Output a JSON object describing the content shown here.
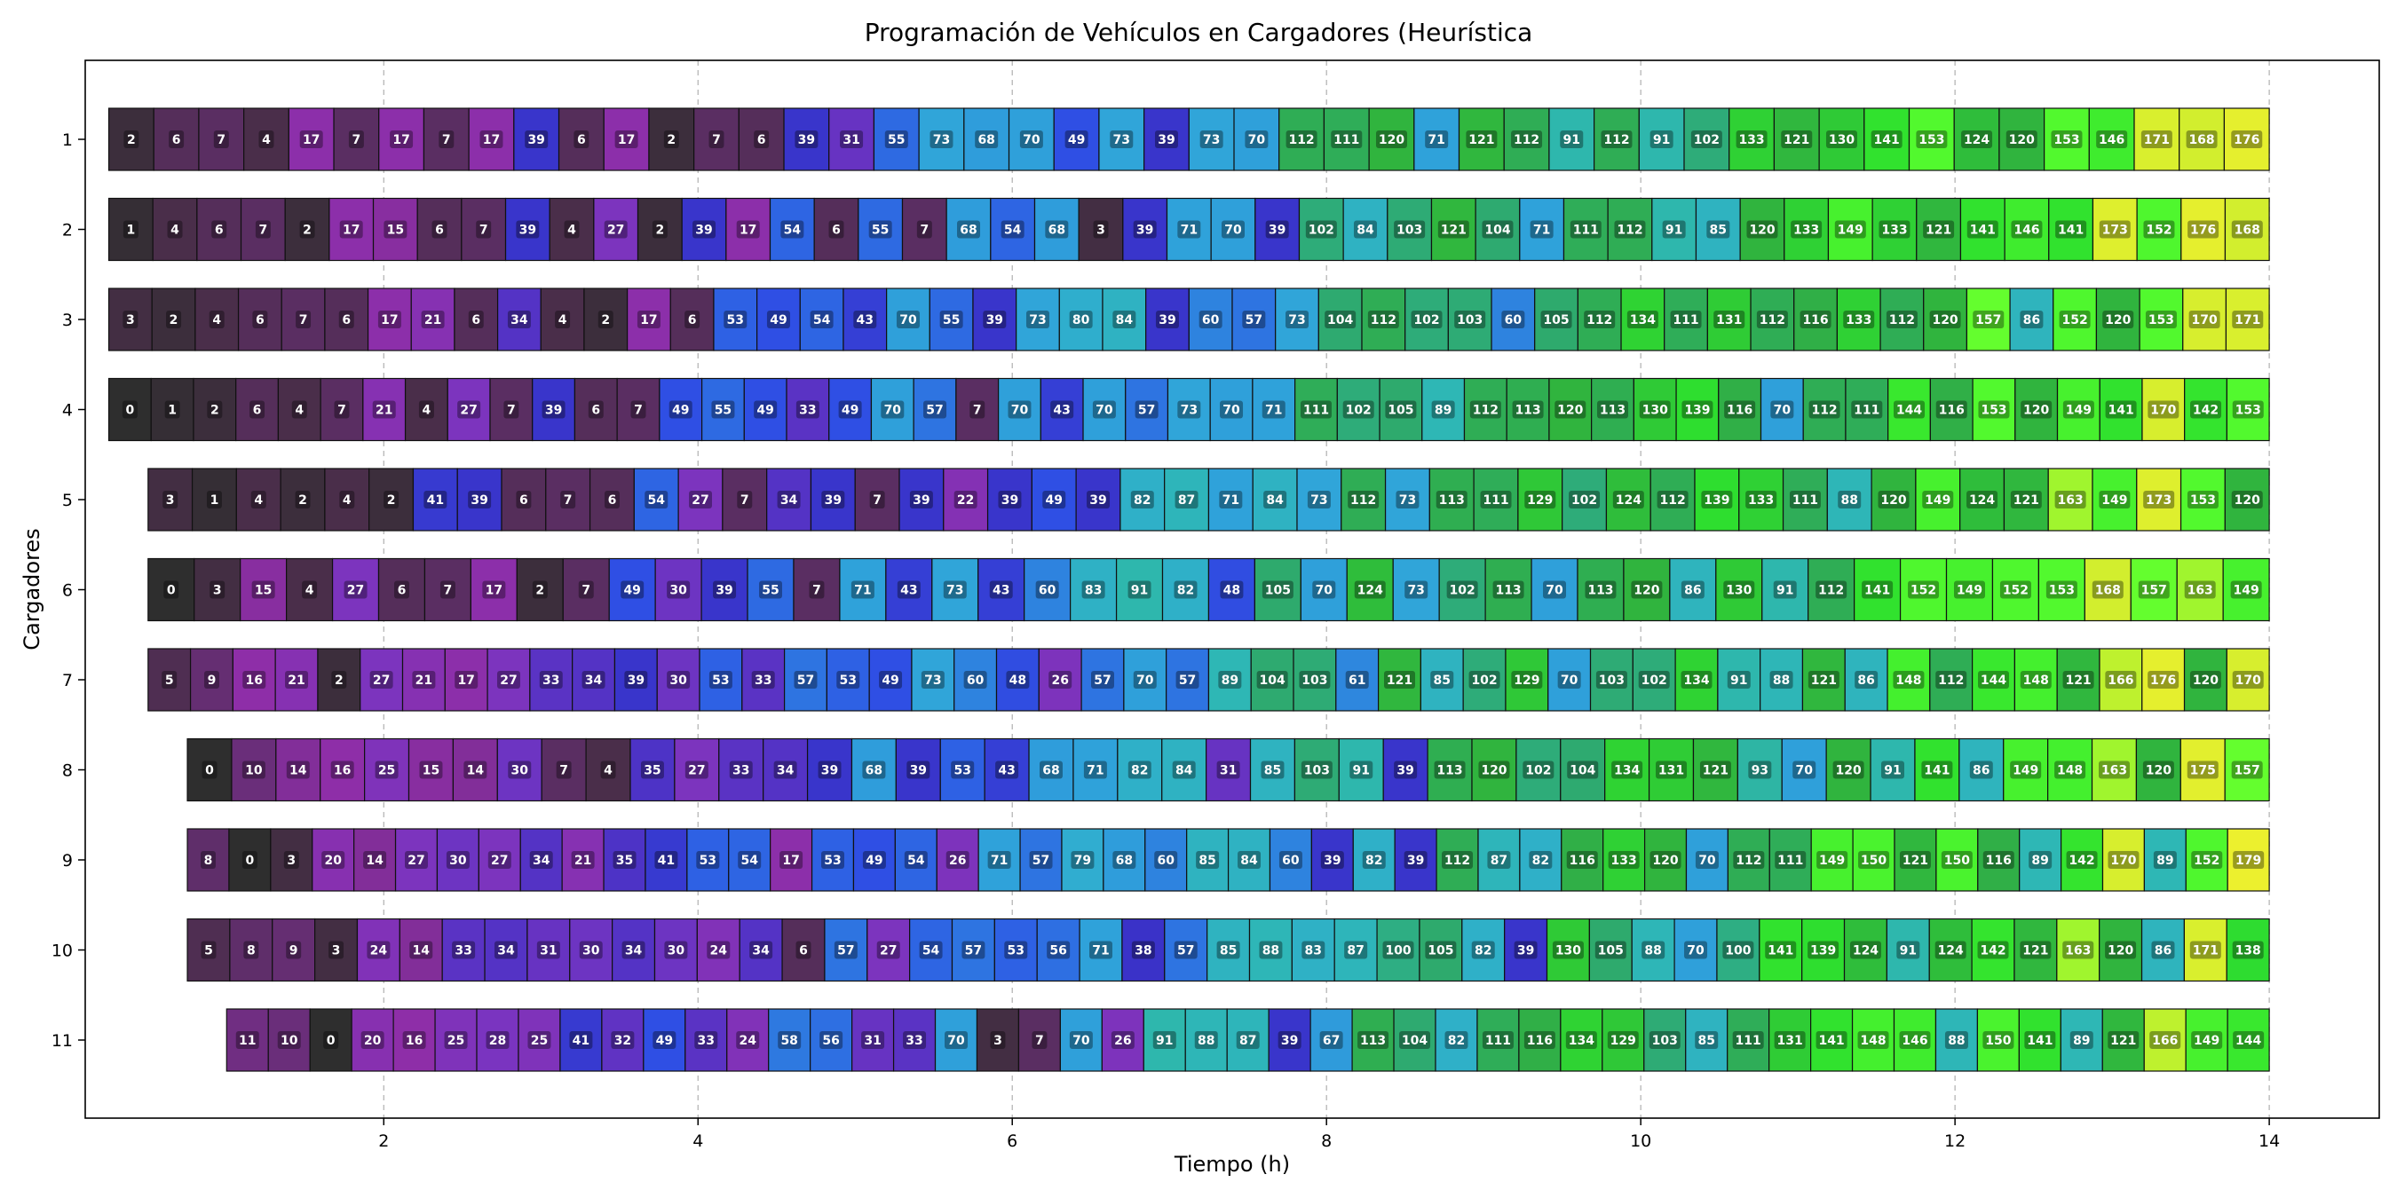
{
  "chart_data": {
    "type": "gantt",
    "title": "Programación de Vehículos en Cargadores (Heurística",
    "xlabel": "Tiempo (h)",
    "ylabel": "Cargadores",
    "xlim": [
      0.1,
      14.7
    ],
    "x_ticks": [
      2,
      4,
      6,
      8,
      10,
      12,
      14
    ],
    "grid": "vertical dashed",
    "rows": [
      {
        "charger": "1",
        "start": 0.25,
        "vehicles": [
          2,
          6,
          7,
          4,
          17,
          7,
          17,
          7,
          17,
          39,
          6,
          17,
          2,
          7,
          6,
          39,
          31,
          55,
          73,
          68,
          70,
          49,
          73,
          39,
          73,
          70,
          112,
          111,
          120,
          71,
          121,
          112,
          91,
          112,
          91,
          102,
          133,
          121,
          130,
          141,
          153,
          124,
          120,
          153,
          146,
          171,
          168,
          176
        ]
      },
      {
        "charger": "2",
        "start": 0.25,
        "vehicles": [
          1,
          4,
          6,
          7,
          2,
          17,
          15,
          6,
          7,
          39,
          4,
          27,
          2,
          39,
          17,
          54,
          6,
          55,
          7,
          68,
          54,
          68,
          3,
          39,
          71,
          70,
          39,
          102,
          84,
          103,
          121,
          104,
          71,
          111,
          112,
          91,
          85,
          120,
          133,
          149,
          133,
          121,
          141,
          146,
          141,
          173,
          152,
          176,
          168
        ]
      },
      {
        "charger": "3",
        "start": 0.25,
        "vehicles": [
          3,
          2,
          4,
          6,
          7,
          6,
          17,
          21,
          6,
          34,
          4,
          2,
          17,
          6,
          53,
          49,
          54,
          43,
          70,
          55,
          39,
          73,
          80,
          84,
          39,
          60,
          57,
          73,
          104,
          112,
          102,
          103,
          60,
          105,
          112,
          134,
          111,
          131,
          112,
          116,
          133,
          112,
          120,
          157,
          86,
          152,
          120,
          153,
          170,
          171
        ]
      },
      {
        "charger": "4",
        "start": 0.25,
        "vehicles": [
          0,
          1,
          2,
          6,
          4,
          7,
          21,
          4,
          27,
          7,
          39,
          6,
          7,
          49,
          55,
          49,
          33,
          49,
          70,
          57,
          7,
          70,
          43,
          70,
          57,
          73,
          70,
          71,
          111,
          102,
          105,
          89,
          112,
          113,
          120,
          113,
          130,
          139,
          116,
          70,
          112,
          111,
          144,
          116,
          153,
          120,
          149,
          141,
          170,
          142,
          153
        ]
      },
      {
        "charger": "5",
        "start": 0.5,
        "vehicles": [
          3,
          1,
          4,
          2,
          4,
          2,
          41,
          39,
          6,
          7,
          6,
          54,
          27,
          7,
          34,
          39,
          7,
          39,
          22,
          39,
          49,
          39,
          82,
          87,
          71,
          84,
          73,
          112,
          73,
          113,
          111,
          129,
          102,
          124,
          112,
          139,
          133,
          111,
          88,
          120,
          149,
          124,
          121,
          163,
          149,
          173,
          153,
          120
        ]
      },
      {
        "charger": "6",
        "start": 0.5,
        "vehicles": [
          0,
          3,
          15,
          4,
          27,
          6,
          7,
          17,
          2,
          7,
          49,
          30,
          39,
          55,
          7,
          71,
          43,
          73,
          43,
          60,
          83,
          91,
          82,
          48,
          105,
          70,
          124,
          73,
          102,
          113,
          70,
          113,
          120,
          86,
          130,
          91,
          112,
          141,
          152,
          149,
          152,
          153,
          168,
          157,
          163,
          149
        ]
      },
      {
        "charger": "7",
        "start": 0.5,
        "vehicles": [
          5,
          9,
          16,
          21,
          2,
          27,
          21,
          17,
          27,
          33,
          34,
          39,
          30,
          53,
          33,
          57,
          53,
          49,
          73,
          60,
          48,
          26,
          57,
          70,
          57,
          89,
          104,
          103,
          61,
          121,
          85,
          102,
          129,
          70,
          103,
          102,
          134,
          91,
          88,
          121,
          86,
          148,
          112,
          144,
          148,
          121,
          166,
          176,
          120,
          170
        ]
      },
      {
        "charger": "8",
        "start": 0.75,
        "vehicles": [
          0,
          10,
          14,
          16,
          25,
          15,
          14,
          30,
          7,
          4,
          35,
          27,
          33,
          34,
          39,
          68,
          39,
          53,
          43,
          68,
          71,
          82,
          84,
          31,
          85,
          103,
          91,
          39,
          113,
          120,
          102,
          104,
          134,
          131,
          121,
          93,
          70,
          120,
          91,
          141,
          86,
          149,
          148,
          163,
          120,
          175,
          157
        ]
      },
      {
        "charger": "9",
        "start": 0.75,
        "vehicles": [
          8,
          0,
          3,
          20,
          14,
          27,
          30,
          27,
          34,
          21,
          35,
          41,
          53,
          54,
          17,
          53,
          49,
          54,
          26,
          71,
          57,
          79,
          68,
          60,
          85,
          84,
          60,
          39,
          82,
          39,
          112,
          87,
          82,
          116,
          133,
          120,
          70,
          112,
          111,
          149,
          150,
          121,
          150,
          116,
          89,
          142,
          170,
          89,
          152,
          179
        ]
      },
      {
        "charger": "10",
        "start": 0.75,
        "vehicles": [
          5,
          8,
          9,
          3,
          24,
          14,
          33,
          34,
          31,
          30,
          34,
          30,
          24,
          34,
          6,
          57,
          27,
          54,
          57,
          53,
          56,
          71,
          38,
          57,
          85,
          88,
          83,
          87,
          100,
          105,
          82,
          39,
          130,
          105,
          88,
          70,
          100,
          141,
          139,
          124,
          91,
          124,
          142,
          121,
          163,
          120,
          86,
          171,
          138
        ]
      },
      {
        "charger": "11",
        "start": 1.0,
        "vehicles": [
          11,
          10,
          0,
          20,
          16,
          25,
          28,
          25,
          41,
          32,
          49,
          33,
          24,
          58,
          56,
          31,
          33,
          70,
          3,
          7,
          70,
          26,
          91,
          88,
          87,
          39,
          67,
          113,
          104,
          82,
          111,
          116,
          134,
          129,
          103,
          85,
          111,
          131,
          141,
          148,
          146,
          88,
          150,
          141,
          89,
          121,
          166,
          149,
          144
        ]
      }
    ]
  }
}
